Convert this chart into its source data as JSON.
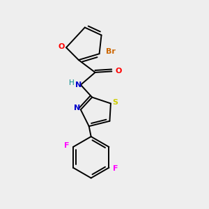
{
  "background_color": "#eeeeee",
  "bond_color": "#000000",
  "atom_colors": {
    "O": "#ff0000",
    "N": "#0000cc",
    "S": "#cccc00",
    "Br": "#cc6600",
    "F": "#ff00ff",
    "H": "#008888"
  },
  "figsize": [
    3.0,
    3.0
  ],
  "dpi": 100
}
